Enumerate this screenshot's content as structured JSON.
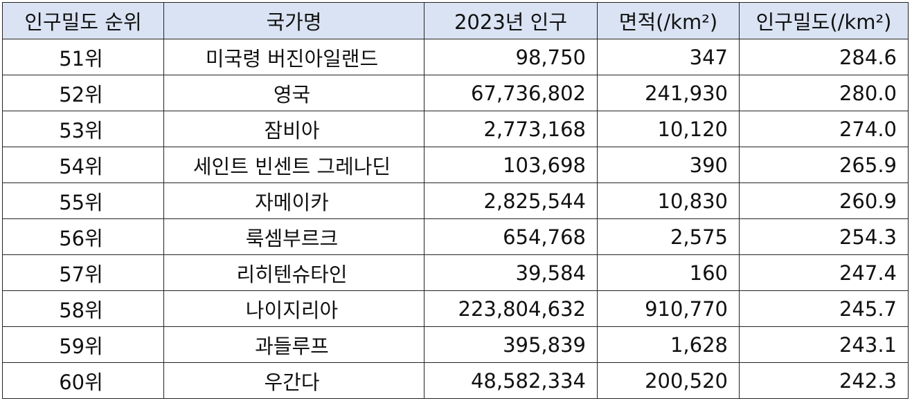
{
  "table": {
    "headers": [
      "인구밀도 순위",
      "국가명",
      "2023년 인구",
      "면적(/km²)",
      "인구밀도(/km²)"
    ],
    "rows": [
      [
        "51위",
        "미국령 버진아일랜드",
        "98,750",
        "347",
        "284.6"
      ],
      [
        "52위",
        "영국",
        "67,736,802",
        "241,930",
        "280.0"
      ],
      [
        "53위",
        "잠비아",
        "2,773,168",
        "10,120",
        "274.0"
      ],
      [
        "54위",
        "세인트 빈센트 그레나딘",
        "103,698",
        "390",
        "265.9"
      ],
      [
        "55위",
        "자메이카",
        "2,825,544",
        "10,830",
        "260.9"
      ],
      [
        "56위",
        "룩셈부르크",
        "654,768",
        "2,575",
        "254.3"
      ],
      [
        "57위",
        "리히텐슈타인",
        "39,584",
        "160",
        "247.4"
      ],
      [
        "58위",
        "나이지리아",
        "223,804,632",
        "910,770",
        "245.7"
      ],
      [
        "59위",
        "과들루프",
        "395,839",
        "1,628",
        "243.1"
      ],
      [
        "60위",
        "우간다",
        "48,582,334",
        "200,520",
        "242.3"
      ]
    ]
  }
}
